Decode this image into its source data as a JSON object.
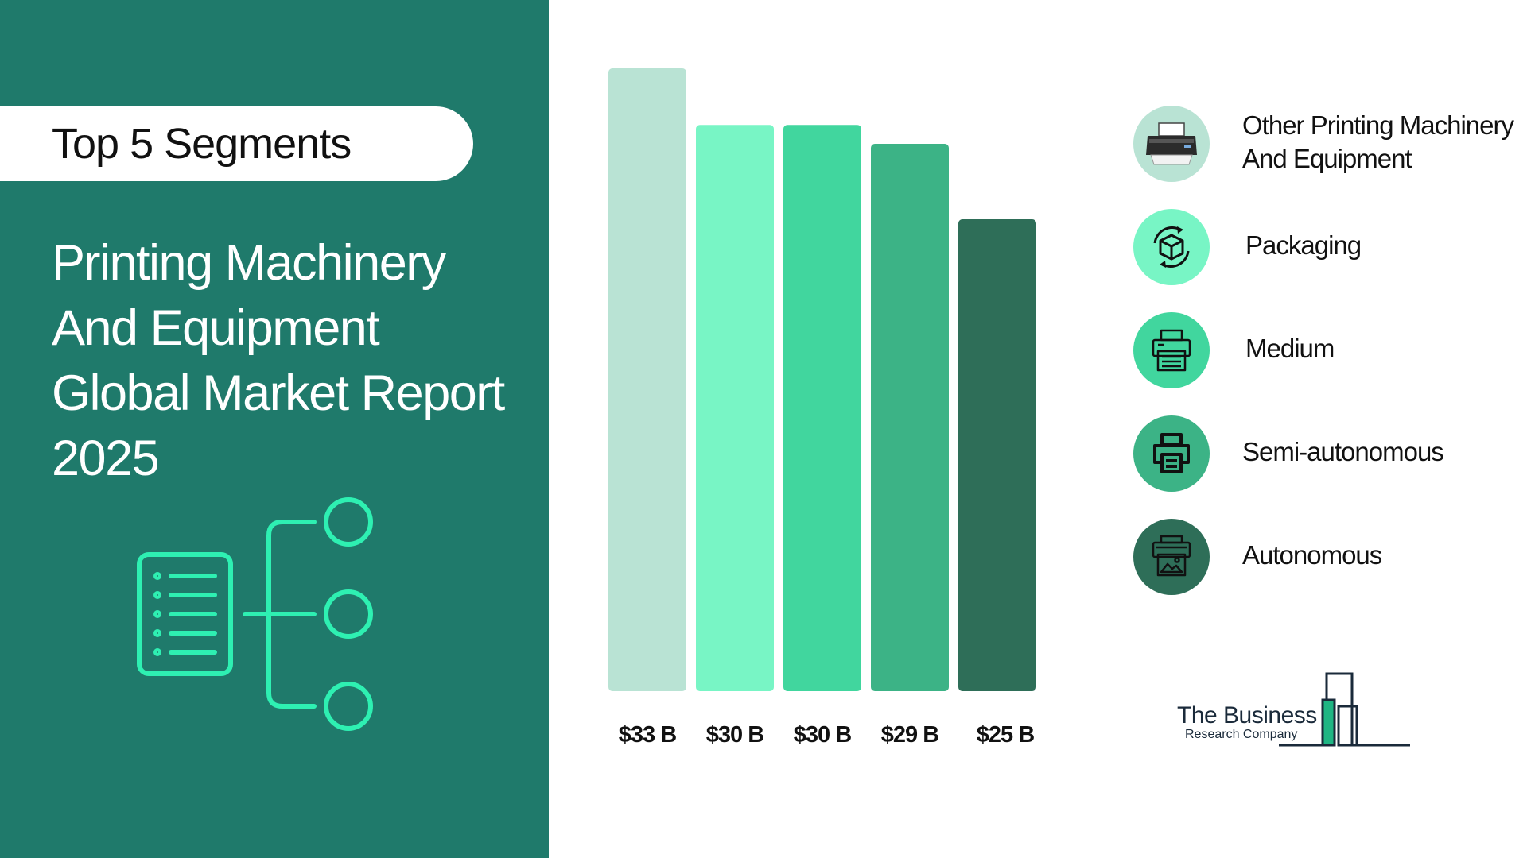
{
  "header": {
    "pill_title": "Top 5 Segments"
  },
  "report": {
    "title_lines": [
      "Printing Machinery",
      "And Equipment",
      "Global Market Report",
      "2025"
    ]
  },
  "chart_data": {
    "type": "bar",
    "categories": [
      "Other Printing Machinery And Equipment",
      "Packaging",
      "Medium",
      "Semi-autonomous",
      "Autonomous"
    ],
    "values": [
      33,
      30,
      30,
      29,
      25
    ],
    "value_labels": [
      "$33 B",
      "$30 B",
      "$30 B",
      "$29 B",
      "$25 B"
    ],
    "colors": [
      "#b9e3d4",
      "#78f5c5",
      "#41d69e",
      "#3cb386",
      "#2e6e58"
    ],
    "ylim": [
      0,
      33
    ]
  },
  "legend": {
    "items": [
      {
        "label_lines": [
          "Other Printing Machinery",
          "And Equipment"
        ],
        "icon": "printer-photo-icon",
        "color": "#b9e3d4"
      },
      {
        "label_lines": [
          "Packaging"
        ],
        "icon": "package-cycle-icon",
        "color": "#78f5c5"
      },
      {
        "label_lines": [
          "Medium"
        ],
        "icon": "office-printer-icon",
        "color": "#41d69e"
      },
      {
        "label_lines": [
          "Semi-autonomous"
        ],
        "icon": "printer-icon",
        "color": "#3cb386"
      },
      {
        "label_lines": [
          "Autonomous"
        ],
        "icon": "photo-printer-icon",
        "color": "#2e6e58"
      }
    ]
  },
  "brand": {
    "line1": "The Business",
    "line2": "Research Company"
  }
}
